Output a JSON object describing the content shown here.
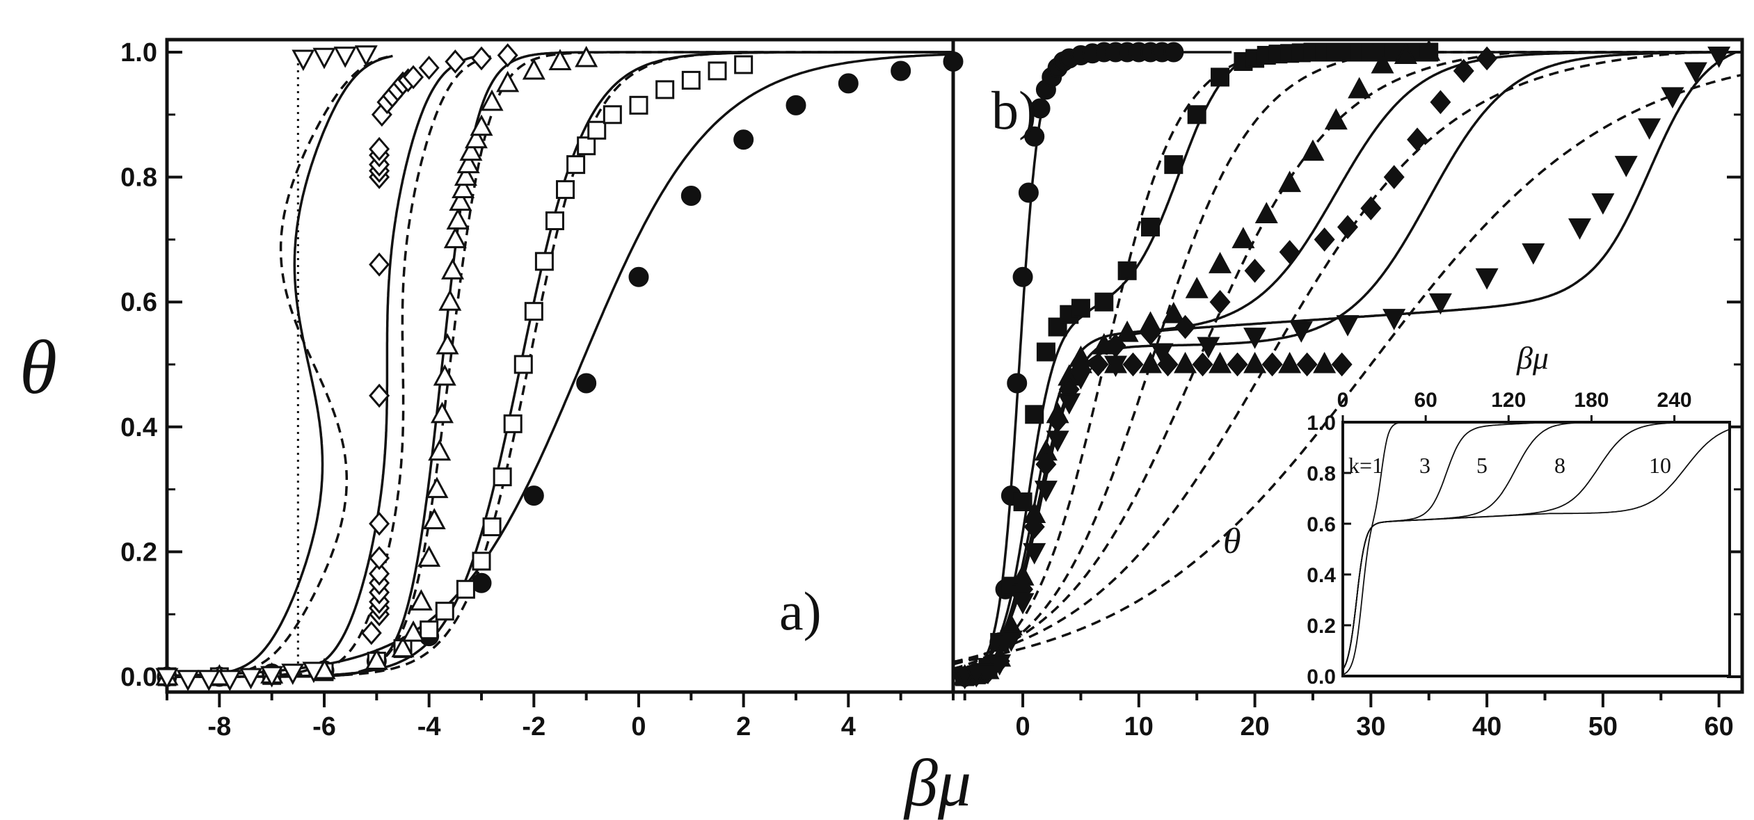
{
  "chart_data": [
    {
      "panel": "a)",
      "type": "scatter",
      "xlabel": "βμ",
      "ylabel": "θ",
      "xlim": [
        -9,
        6
      ],
      "ylim": [
        0,
        1
      ],
      "xticks": [
        -8,
        -6,
        -4,
        -2,
        0,
        2,
        4
      ],
      "yticks": [
        0.0,
        0.2,
        0.4,
        0.6,
        0.8,
        1.0
      ],
      "ytick_labels": [
        "0.0",
        "0.2",
        "0.4",
        "0.6",
        "0.8",
        "1.0"
      ],
      "series": [
        {
          "marker": "filled-circle",
          "x": [
            -9,
            -8,
            -7,
            -6,
            -5,
            -4,
            -3,
            -2,
            -1,
            0,
            1,
            2,
            3,
            4,
            5,
            6
          ],
          "y": [
            0.0,
            0.0,
            0.005,
            0.01,
            0.025,
            0.065,
            0.15,
            0.29,
            0.47,
            0.64,
            0.77,
            0.86,
            0.915,
            0.95,
            0.97,
            0.985
          ]
        },
        {
          "marker": "open-square",
          "x": [
            -9,
            -8,
            -7,
            -6,
            -5,
            -4.5,
            -4,
            -3.7,
            -3.3,
            -3.0,
            -2.8,
            -2.6,
            -2.4,
            -2.2,
            -2.0,
            -1.8,
            -1.6,
            -1.4,
            -1.2,
            -1.0,
            -0.8,
            -0.5,
            0,
            0.5,
            1,
            1.5,
            2
          ],
          "y": [
            0.0,
            0.0,
            0.002,
            0.008,
            0.025,
            0.045,
            0.075,
            0.105,
            0.14,
            0.185,
            0.24,
            0.32,
            0.405,
            0.5,
            0.585,
            0.665,
            0.73,
            0.78,
            0.82,
            0.85,
            0.875,
            0.9,
            0.915,
            0.94,
            0.955,
            0.97,
            0.98
          ]
        },
        {
          "marker": "open-triangle-up",
          "x": [
            -9,
            -8,
            -7,
            -6,
            -5,
            -4.5,
            -4.3,
            -4.15,
            -4.0,
            -3.9,
            -3.85,
            -3.8,
            -3.75,
            -3.7,
            -3.65,
            -3.6,
            -3.55,
            -3.5,
            -3.45,
            -3.4,
            -3.35,
            -3.3,
            -3.25,
            -3.2,
            -3.1,
            -3.0,
            -2.8,
            -2.5,
            -2.0,
            -1.5,
            -1.0
          ],
          "y": [
            0.0,
            0.0,
            0.003,
            0.01,
            0.025,
            0.045,
            0.07,
            0.12,
            0.19,
            0.25,
            0.3,
            0.36,
            0.42,
            0.48,
            0.53,
            0.6,
            0.65,
            0.7,
            0.73,
            0.76,
            0.78,
            0.8,
            0.82,
            0.84,
            0.86,
            0.88,
            0.92,
            0.95,
            0.97,
            0.985,
            0.99
          ]
        },
        {
          "marker": "open-diamond",
          "x": [
            -5.1,
            -4.95,
            -4.95,
            -4.95,
            -4.95,
            -4.95,
            -4.95,
            -4.95,
            -4.95,
            -4.95,
            -4.95,
            -4.95,
            -4.95,
            -4.95,
            -4.95,
            -4.95,
            -4.9,
            -4.8,
            -4.7,
            -4.6,
            -4.5,
            -4.4,
            -4.3,
            -4.0,
            -3.5,
            -3.0,
            -2.5
          ],
          "y": [
            0.07,
            0.1,
            0.11,
            0.12,
            0.135,
            0.15,
            0.165,
            0.19,
            0.245,
            0.45,
            0.66,
            0.8,
            0.81,
            0.82,
            0.835,
            0.845,
            0.9,
            0.92,
            0.93,
            0.94,
            0.95,
            0.955,
            0.96,
            0.975,
            0.985,
            0.99,
            0.995
          ]
        },
        {
          "marker": "open-triangle-down",
          "x": [
            -9.0,
            -8.6,
            -8.2,
            -7.8,
            -7.4,
            -7.0,
            -6.6,
            -6.2,
            -6.4,
            -6.0,
            -5.6,
            -5.2
          ],
          "y": [
            0.0,
            -0.003,
            -0.003,
            -0.003,
            0.0,
            0.003,
            0.007,
            0.01,
            0.99,
            0.993,
            0.995,
            0.997
          ]
        }
      ],
      "reference_line": {
        "style": "dotted",
        "x": -6.5
      }
    },
    {
      "panel": "b)",
      "type": "scatter",
      "xlabel": "βμ",
      "ylabel": "θ",
      "xlim": [
        -6,
        62
      ],
      "ylim": [
        0,
        1
      ],
      "xticks": [
        0,
        10,
        20,
        30,
        40,
        50,
        60
      ],
      "series": [
        {
          "marker": "filled-circle",
          "x": [
            -5,
            -4,
            -3,
            -2,
            -1.5,
            -1,
            -0.5,
            0,
            0.5,
            1,
            1.5,
            2,
            2.5,
            3,
            3.5,
            4,
            5,
            6,
            7,
            8,
            9,
            10,
            11,
            12,
            13
          ],
          "y": [
            0.0,
            0.005,
            0.015,
            0.055,
            0.14,
            0.29,
            0.47,
            0.64,
            0.775,
            0.865,
            0.91,
            0.94,
            0.96,
            0.975,
            0.985,
            0.99,
            0.995,
            0.998,
            1.0,
            1.0,
            1.0,
            1.0,
            1.0,
            1.0,
            1.0
          ]
        },
        {
          "marker": "filled-square",
          "x": [
            -5,
            -4,
            -3,
            -2,
            -1,
            0,
            1,
            2,
            3,
            4,
            5,
            7,
            9,
            11,
            13,
            15,
            17,
            19,
            20,
            21,
            22,
            23,
            24,
            25,
            26,
            27,
            28,
            29,
            30,
            31,
            32,
            33,
            34,
            35
          ],
          "y": [
            0.0,
            0.003,
            0.015,
            0.055,
            0.145,
            0.28,
            0.42,
            0.52,
            0.56,
            0.58,
            0.59,
            0.6,
            0.65,
            0.72,
            0.82,
            0.9,
            0.96,
            0.985,
            0.99,
            0.995,
            0.997,
            0.998,
            0.999,
            1.0,
            1.0,
            1.0,
            1.0,
            1.0,
            1.0,
            1.0,
            1.0,
            1.0,
            1.0,
            1.0
          ]
        },
        {
          "marker": "filled-triangle-up",
          "x": [
            -5,
            -4,
            -3,
            -2,
            -1,
            0,
            1,
            2,
            3,
            4,
            5,
            7,
            9,
            11,
            13,
            15,
            17,
            19,
            21,
            23,
            25,
            27,
            29,
            31,
            33,
            35
          ],
          "y": [
            0.0,
            0.003,
            0.01,
            0.03,
            0.08,
            0.16,
            0.26,
            0.36,
            0.42,
            0.48,
            0.51,
            0.53,
            0.55,
            0.565,
            0.58,
            0.62,
            0.66,
            0.7,
            0.74,
            0.79,
            0.84,
            0.89,
            0.94,
            0.98,
            0.995,
            1.0
          ]
        },
        {
          "marker": "filled-diamond",
          "x": [
            -5,
            -4,
            -3,
            -2,
            -1,
            0,
            1,
            2,
            3,
            4,
            5,
            8,
            11,
            14,
            17,
            20,
            23,
            26,
            28,
            30,
            32,
            34,
            36,
            38,
            40
          ],
          "y": [
            0.0,
            0.003,
            0.008,
            0.025,
            0.07,
            0.14,
            0.24,
            0.34,
            0.41,
            0.46,
            0.5,
            0.53,
            0.55,
            0.56,
            0.6,
            0.65,
            0.68,
            0.7,
            0.72,
            0.75,
            0.8,
            0.86,
            0.92,
            0.97,
            0.99
          ]
        },
        {
          "marker": "filled-triangle-down",
          "x": [
            -5,
            -4,
            -3,
            -2,
            -1,
            0,
            1,
            2,
            3,
            4,
            5,
            8,
            12,
            16,
            20,
            24,
            28,
            32,
            36,
            40,
            44,
            48,
            50,
            52,
            54,
            56,
            58,
            60
          ],
          "y": [
            0.0,
            0.003,
            0.008,
            0.022,
            0.06,
            0.12,
            0.2,
            0.3,
            0.38,
            0.44,
            0.48,
            0.5,
            0.52,
            0.53,
            0.545,
            0.555,
            0.565,
            0.575,
            0.6,
            0.64,
            0.68,
            0.72,
            0.76,
            0.82,
            0.88,
            0.93,
            0.97,
            0.995
          ]
        }
      ],
      "inset": {
        "type": "line",
        "ylabel": "θ",
        "top_axis_label": "βμ",
        "xlim": [
          0,
          280
        ],
        "ylim": [
          0,
          1
        ],
        "xticks": [
          0,
          60,
          120,
          180,
          240
        ],
        "yticks": [
          0.0,
          0.2,
          0.4,
          0.6,
          0.8,
          1.0
        ],
        "ytick_labels": [
          "0.0",
          "0.2",
          "0.4",
          "0.6",
          "0.8",
          "1.0"
        ],
        "curve_labels": [
          "k=1",
          "3",
          "5",
          "8",
          "10"
        ]
      }
    }
  ]
}
